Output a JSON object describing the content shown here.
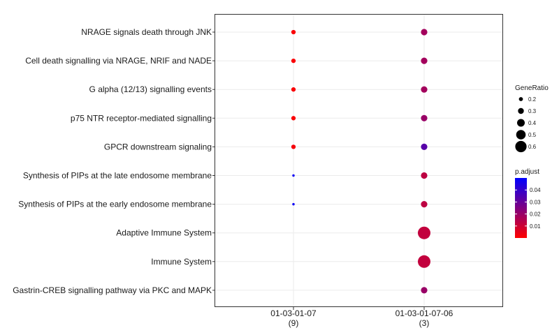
{
  "chart_data": {
    "type": "scatter",
    "title": "",
    "xlabel": "",
    "ylabel": "",
    "categories_y": [
      "NRAGE signals death through JNK",
      "Cell death signalling via NRAGE, NRIF and NADE",
      "G alpha (12/13) signalling events",
      "p75 NTR receptor-mediated signalling",
      "GPCR downstream signaling",
      "Synthesis of PIPs at the late endosome membrane",
      "Synthesis of PIPs at the early endosome membrane",
      "Adaptive Immune System",
      "Immune System",
      "Gastrin-CREB signalling pathway via PKC and MAPK"
    ],
    "categories_x": [
      {
        "name": "01-03-01-07",
        "count": "(9)"
      },
      {
        "name": "01-03-01-07-06",
        "count": "(3)"
      }
    ],
    "points": [
      {
        "x": 0,
        "y": 0,
        "gene_ratio": 0.22,
        "p_adjust": 0.001
      },
      {
        "x": 0,
        "y": 1,
        "gene_ratio": 0.22,
        "p_adjust": 0.001
      },
      {
        "x": 0,
        "y": 2,
        "gene_ratio": 0.22,
        "p_adjust": 0.001
      },
      {
        "x": 0,
        "y": 3,
        "gene_ratio": 0.22,
        "p_adjust": 0.001
      },
      {
        "x": 0,
        "y": 4,
        "gene_ratio": 0.22,
        "p_adjust": 0.002
      },
      {
        "x": 0,
        "y": 5,
        "gene_ratio": 0.11,
        "p_adjust": 0.048
      },
      {
        "x": 0,
        "y": 6,
        "gene_ratio": 0.11,
        "p_adjust": 0.048
      },
      {
        "x": 1,
        "y": 0,
        "gene_ratio": 0.33,
        "p_adjust": 0.018
      },
      {
        "x": 1,
        "y": 1,
        "gene_ratio": 0.33,
        "p_adjust": 0.018
      },
      {
        "x": 1,
        "y": 2,
        "gene_ratio": 0.33,
        "p_adjust": 0.018
      },
      {
        "x": 1,
        "y": 3,
        "gene_ratio": 0.33,
        "p_adjust": 0.02
      },
      {
        "x": 1,
        "y": 4,
        "gene_ratio": 0.33,
        "p_adjust": 0.033
      },
      {
        "x": 1,
        "y": 5,
        "gene_ratio": 0.33,
        "p_adjust": 0.013
      },
      {
        "x": 1,
        "y": 6,
        "gene_ratio": 0.33,
        "p_adjust": 0.013
      },
      {
        "x": 1,
        "y": 7,
        "gene_ratio": 0.67,
        "p_adjust": 0.012
      },
      {
        "x": 1,
        "y": 8,
        "gene_ratio": 0.67,
        "p_adjust": 0.012
      },
      {
        "x": 1,
        "y": 9,
        "gene_ratio": 0.33,
        "p_adjust": 0.02
      }
    ],
    "legend_size": {
      "title": "GeneRatio",
      "values": [
        0.2,
        0.3,
        0.4,
        0.5,
        0.6
      ],
      "labels": [
        "0.2",
        "0.3",
        "0.4",
        "0.5",
        "0.6"
      ]
    },
    "legend_color": {
      "title": "p.adjust",
      "range": [
        0.0,
        0.05
      ],
      "ticks": [
        0.01,
        0.02,
        0.03,
        0.04
      ],
      "tick_labels": [
        "0.01",
        "0.02",
        "0.03",
        "0.04"
      ],
      "low_color": "#ff0000",
      "high_color": "#0000ff"
    },
    "grid": true,
    "legend_position": "right"
  }
}
